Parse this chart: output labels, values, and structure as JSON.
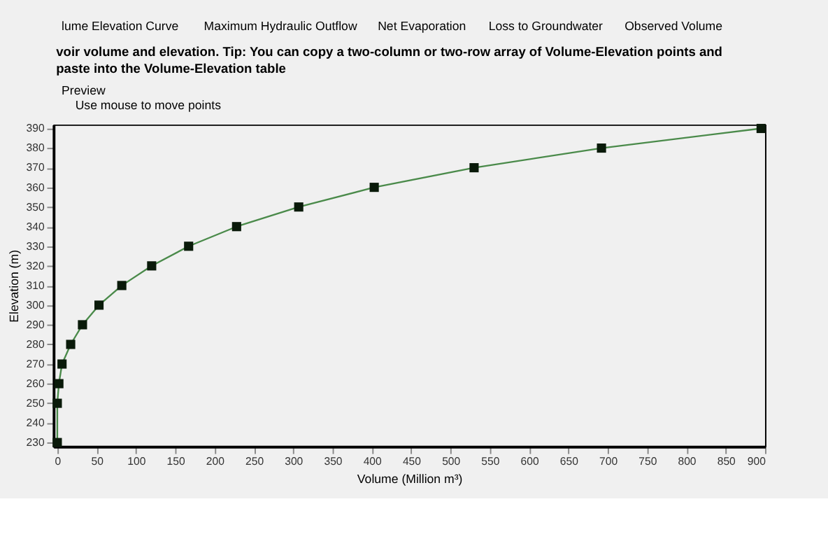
{
  "chart_data": {
    "type": "line",
    "title": "voir volume and elevation.  Tip: You can copy a two-column or two-row array of Volume-Elevation points and paste into the Volume-Elevation table",
    "annotations": [
      "lume Elevation Curve",
      "Maximum Hydraulic Outflow",
      "Net Evaporation",
      "Loss to Groundwater",
      "Observed Volume",
      "Preview",
      "Use mouse to move points"
    ],
    "xlabel": "Volume (Million m³)",
    "ylabel": "Elevation (m)",
    "x": [
      0,
      0,
      2,
      6,
      17,
      32,
      53,
      82,
      120,
      167,
      228,
      307,
      403,
      530,
      692,
      895
    ],
    "series": [
      {
        "color": "#4a8a4a",
        "values": [
          230,
          250,
          260,
          270,
          280,
          290,
          300,
          310,
          320,
          330,
          340,
          350,
          360,
          370,
          380,
          390
        ]
      }
    ],
    "marker": "square",
    "line_style": "solid",
    "grid": false,
    "xlim": [
      -5,
      900
    ],
    "xticks": [
      0,
      50,
      100,
      150,
      200,
      250,
      300,
      350,
      400,
      450,
      500,
      550,
      600,
      650,
      700,
      750,
      800,
      850,
      900
    ],
    "ylim": [
      228,
      392
    ],
    "yticks": [
      230,
      240,
      250,
      260,
      270,
      280,
      290,
      300,
      310,
      320,
      330,
      340,
      350,
      360,
      370,
      380,
      390
    ]
  }
}
